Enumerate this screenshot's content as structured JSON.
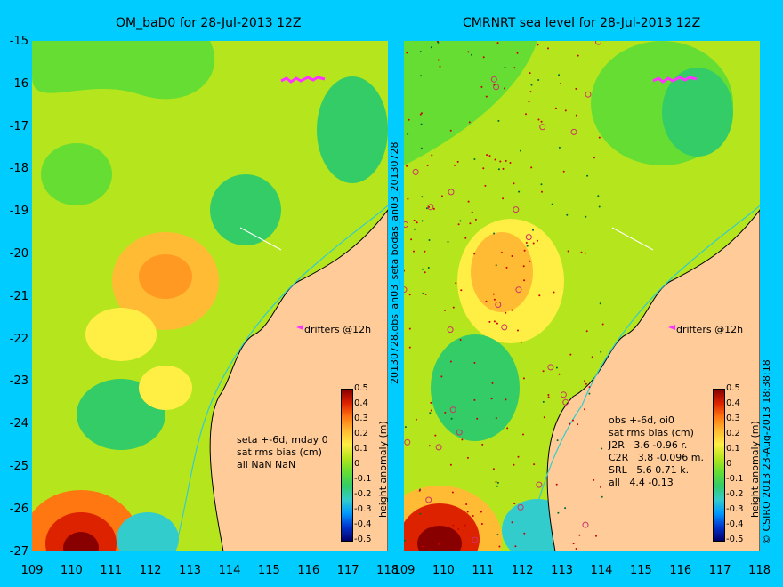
{
  "left_panel": {
    "title": "OM_baD0 for 28-Jul-2013 12Z",
    "info": [
      "seta +-6d, mday 0",
      "sat rms bias (cm)",
      "all NaN NaN"
    ],
    "drifters_label": "drifters @12h"
  },
  "right_panel": {
    "title": "CMRNRT sea level  for 28-Jul-2013 12Z",
    "info": [
      "obs +-6d, oi0",
      "sat rms bias (cm)",
      "J2R   3.6 -0.96 r.",
      "C2R   3.8 -0.096 m.",
      "SRL   5.6 0.71 k.",
      "all   4.4 -0.13"
    ],
    "drifters_label": "drifters @12h"
  },
  "side_label": "20130728.obs_an03_seta   bodas_an03_20130728",
  "copyright": "© CSIRO 2013   23-Aug-2013 18:38:18",
  "colorbar": {
    "label": "height anomaly (m)",
    "ticks": [
      "0.5",
      "0.4",
      "0.3",
      "0.2",
      "0.1",
      "0",
      "-0.1",
      "-0.2",
      "-0.3",
      "-0.4",
      "-0.5"
    ],
    "colors": [
      "#00006a",
      "#0033cc",
      "#0099ff",
      "#33cccc",
      "#33cc66",
      "#66dd33",
      "#b5e61d",
      "#ffee44",
      "#ffbb33",
      "#ff7711",
      "#dd2200",
      "#880000"
    ]
  },
  "axes": {
    "lat_ticks": [
      "-15",
      "-16",
      "-17",
      "-18",
      "-19",
      "-20",
      "-21",
      "-22",
      "-23",
      "-24",
      "-25",
      "-26",
      "-27"
    ],
    "lon_ticks": [
      "109",
      "110",
      "111",
      "112",
      "113",
      "114",
      "115",
      "116",
      "117",
      "118"
    ]
  }
}
